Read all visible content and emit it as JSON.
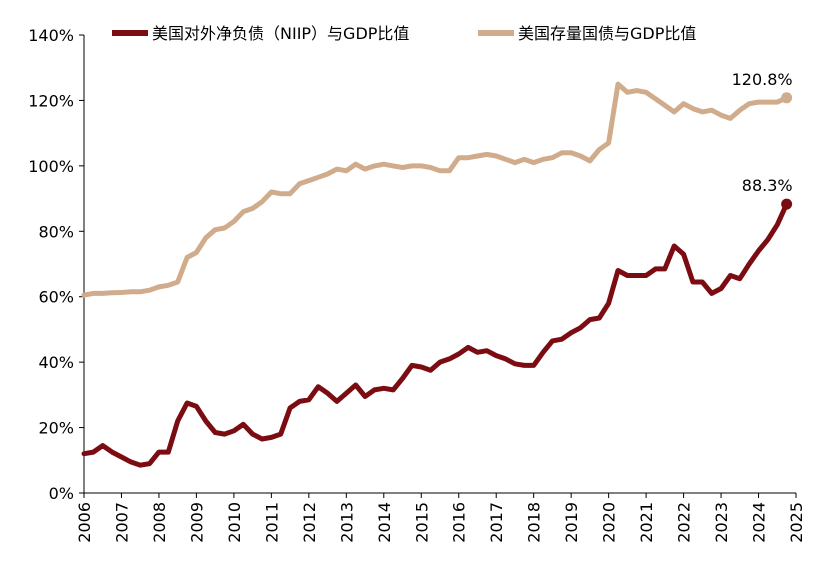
{
  "chart_data": {
    "type": "line",
    "x_ticks": [
      "2006",
      "2007",
      "2008",
      "2009",
      "2010",
      "2011",
      "2012",
      "2013",
      "2014",
      "2015",
      "2016",
      "2017",
      "2018",
      "2019",
      "2020",
      "2021",
      "2022",
      "2023",
      "2024",
      "2025"
    ],
    "y_ticks": [
      "0%",
      "20%",
      "40%",
      "60%",
      "80%",
      "100%",
      "120%",
      "140%"
    ],
    "ylim": [
      0,
      140
    ],
    "xlim": [
      2006,
      2025
    ],
    "grid": false,
    "legend_position": "top",
    "series": [
      {
        "name": "美国对外净负债（NIIP）与GDP比值",
        "color": "#7B0D12",
        "end_label": "88.3%",
        "x": [
          2006.0,
          2006.25,
          2006.5,
          2006.75,
          2007.0,
          2007.25,
          2007.5,
          2007.75,
          2008.0,
          2008.25,
          2008.5,
          2008.75,
          2009.0,
          2009.25,
          2009.5,
          2009.75,
          2010.0,
          2010.25,
          2010.5,
          2010.75,
          2011.0,
          2011.25,
          2011.5,
          2011.75,
          2012.0,
          2012.25,
          2012.5,
          2012.75,
          2013.0,
          2013.25,
          2013.5,
          2013.75,
          2014.0,
          2014.25,
          2014.5,
          2014.75,
          2015.0,
          2015.25,
          2015.5,
          2015.75,
          2016.0,
          2016.25,
          2016.5,
          2016.75,
          2017.0,
          2017.25,
          2017.5,
          2017.75,
          2018.0,
          2018.25,
          2018.5,
          2018.75,
          2019.0,
          2019.25,
          2019.5,
          2019.75,
          2020.0,
          2020.25,
          2020.5,
          2020.75,
          2021.0,
          2021.25,
          2021.5,
          2021.75,
          2022.0,
          2022.25,
          2022.5,
          2022.75,
          2023.0,
          2023.25,
          2023.5,
          2023.75,
          2024.0,
          2024.25,
          2024.5,
          2024.75
        ],
        "values": [
          12,
          12.5,
          14.5,
          12.5,
          11,
          9.5,
          8.5,
          9,
          12.5,
          12.5,
          22,
          27.5,
          26.5,
          22,
          18.5,
          18,
          19,
          21,
          18,
          16.5,
          17,
          18,
          26,
          28,
          28.5,
          32.5,
          30.5,
          28,
          30.5,
          33,
          29.5,
          31.5,
          32,
          31.5,
          35,
          39,
          38.5,
          37.5,
          40,
          41,
          42.5,
          44.5,
          43,
          43.5,
          42,
          41,
          39.5,
          39,
          39,
          43,
          46.5,
          47,
          49,
          50.5,
          53,
          53.5,
          58,
          68,
          66.5,
          66.5,
          66.5,
          68.5,
          68.5,
          75.5,
          73,
          64.5,
          64.5,
          61,
          62.5,
          66.5,
          65.5,
          70,
          74,
          77.5,
          82,
          88.3
        ]
      },
      {
        "name": "美国存量国债与GDP比值",
        "color": "#D0AC8C",
        "end_label": "120.8%",
        "x": [
          2006.0,
          2006.25,
          2006.5,
          2006.75,
          2007.0,
          2007.25,
          2007.5,
          2007.75,
          2008.0,
          2008.25,
          2008.5,
          2008.75,
          2009.0,
          2009.25,
          2009.5,
          2009.75,
          2010.0,
          2010.25,
          2010.5,
          2010.75,
          2011.0,
          2011.25,
          2011.5,
          2011.75,
          2012.0,
          2012.25,
          2012.5,
          2012.75,
          2013.0,
          2013.25,
          2013.5,
          2013.75,
          2014.0,
          2014.25,
          2014.5,
          2014.75,
          2015.0,
          2015.25,
          2015.5,
          2015.75,
          2016.0,
          2016.25,
          2016.5,
          2016.75,
          2017.0,
          2017.25,
          2017.5,
          2017.75,
          2018.0,
          2018.25,
          2018.5,
          2018.75,
          2019.0,
          2019.25,
          2019.5,
          2019.75,
          2020.0,
          2020.25,
          2020.5,
          2020.75,
          2021.0,
          2021.25,
          2021.5,
          2021.75,
          2022.0,
          2022.25,
          2022.5,
          2022.75,
          2023.0,
          2023.25,
          2023.5,
          2023.75,
          2024.0,
          2024.25,
          2024.5,
          2024.75
        ],
        "values": [
          60.5,
          61,
          61,
          61.2,
          61.3,
          61.5,
          61.5,
          62,
          63,
          63.5,
          64.5,
          72,
          73.5,
          78,
          80.5,
          81,
          83,
          86,
          87,
          89,
          92,
          91.5,
          91.5,
          94.5,
          95.5,
          96.5,
          97.5,
          99,
          98.5,
          100.5,
          99,
          100,
          100.5,
          100,
          99.5,
          100,
          100,
          99.5,
          98.5,
          98.5,
          102.5,
          102.5,
          103,
          103.5,
          103,
          102,
          101,
          102,
          101,
          102,
          102.5,
          104,
          104,
          103,
          101.5,
          105,
          107,
          125,
          122.5,
          123,
          122.5,
          120.5,
          118.5,
          116.5,
          119,
          117.5,
          116.5,
          117,
          115.5,
          114.5,
          117,
          119,
          119.5,
          119.5,
          119.5,
          120.8
        ]
      }
    ]
  }
}
